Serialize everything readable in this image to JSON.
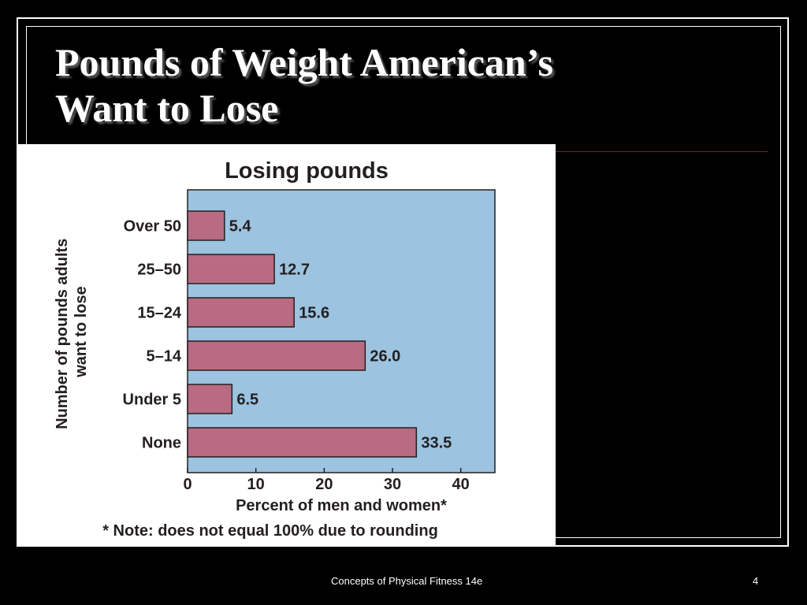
{
  "slide": {
    "title_lines": [
      "Pounds of Weight American’s",
      "Want to Lose"
    ],
    "footer": "Concepts of Physical Fitness 14e",
    "page_number": "4"
  },
  "chart_data": {
    "type": "bar",
    "orientation": "horizontal",
    "title": "Losing pounds",
    "categories": [
      "Over 50",
      "25–50",
      "15–24",
      "5–14",
      "Under 5",
      "None"
    ],
    "values": [
      5.4,
      12.7,
      15.6,
      26.0,
      6.5,
      33.5
    ],
    "value_labels": [
      "5.4",
      "12.7",
      "15.6",
      "26.0",
      "6.5",
      "33.5"
    ],
    "ylabel": [
      "Number of pounds adults",
      "want to lose"
    ],
    "xlabel": "Percent of men and women*",
    "note": "* Note: does not equal 100% due to rounding",
    "xlim": [
      0,
      45
    ],
    "xticks": [
      0,
      10,
      20,
      30,
      40
    ],
    "grid": false,
    "colors": {
      "plot_bg": "#9cc3df",
      "bar": "#b86b82"
    }
  }
}
